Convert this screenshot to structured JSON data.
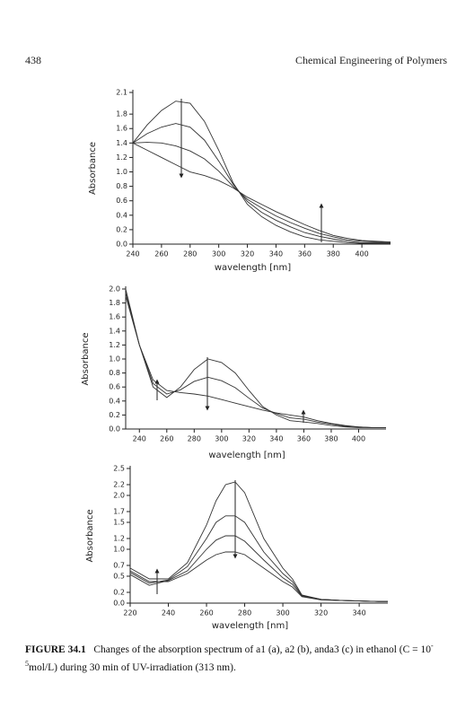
{
  "header": {
    "page_number": "438",
    "running_title": "Chemical Engineering of Polymers"
  },
  "chart_data": [
    {
      "type": "line",
      "ylabel": "Absorbance",
      "xlabel": "wavelength [nm]",
      "x": [
        240,
        250,
        260,
        270,
        280,
        290,
        300,
        310,
        320,
        330,
        340,
        350,
        360,
        370,
        380,
        390,
        400,
        410,
        420
      ],
      "series": [
        {
          "color": "#333333",
          "values": [
            1.4,
            1.65,
            1.85,
            1.98,
            1.95,
            1.7,
            1.3,
            0.85,
            0.55,
            0.38,
            0.26,
            0.17,
            0.1,
            0.06,
            0.04,
            0.02,
            0.01,
            0.01,
            0.01
          ]
        },
        {
          "color": "#333333",
          "values": [
            1.4,
            1.53,
            1.62,
            1.67,
            1.62,
            1.44,
            1.15,
            0.83,
            0.59,
            0.44,
            0.33,
            0.24,
            0.16,
            0.11,
            0.07,
            0.04,
            0.02,
            0.02,
            0.02
          ]
        },
        {
          "color": "#333333",
          "values": [
            1.4,
            1.41,
            1.4,
            1.36,
            1.29,
            1.18,
            1.01,
            0.8,
            0.62,
            0.5,
            0.39,
            0.3,
            0.22,
            0.15,
            0.1,
            0.06,
            0.04,
            0.03,
            0.02
          ]
        },
        {
          "color": "#333333",
          "values": [
            1.4,
            1.3,
            1.2,
            1.1,
            1.0,
            0.95,
            0.88,
            0.78,
            0.65,
            0.55,
            0.45,
            0.36,
            0.27,
            0.19,
            0.12,
            0.08,
            0.05,
            0.04,
            0.03
          ]
        }
      ],
      "xlim": [
        240,
        420
      ],
      "xticks": [
        240,
        260,
        280,
        300,
        320,
        340,
        360,
        380,
        400
      ],
      "ylim": [
        0,
        2.1
      ],
      "yticks": [
        {
          "value": 0,
          "label": "0.0"
        },
        0.2,
        0.4,
        0.6,
        0.8,
        {
          "value": 1,
          "label": "1.0"
        },
        1.2,
        1.4,
        1.6,
        1.8,
        2.1
      ]
    },
    {
      "type": "line",
      "ylabel": "Absorbance",
      "xlabel": "wavelength [nm]",
      "x": [
        230,
        240,
        250,
        260,
        270,
        280,
        290,
        300,
        310,
        320,
        330,
        340,
        350,
        360,
        370,
        380,
        390,
        400,
        410,
        420
      ],
      "series": [
        {
          "color": "#333333",
          "values": [
            2.0,
            1.2,
            0.6,
            0.45,
            0.6,
            0.85,
            1.0,
            0.95,
            0.8,
            0.55,
            0.32,
            0.2,
            0.12,
            0.1,
            0.08,
            0.05,
            0.03,
            0.02,
            0.02,
            0.02
          ]
        },
        {
          "color": "#333333",
          "values": [
            1.95,
            1.2,
            0.65,
            0.5,
            0.56,
            0.68,
            0.74,
            0.69,
            0.59,
            0.44,
            0.3,
            0.22,
            0.16,
            0.14,
            0.1,
            0.07,
            0.04,
            0.03,
            0.02,
            0.02
          ]
        },
        {
          "color": "#333333",
          "values": [
            1.9,
            1.2,
            0.7,
            0.55,
            0.52,
            0.5,
            0.47,
            0.42,
            0.37,
            0.32,
            0.27,
            0.23,
            0.2,
            0.17,
            0.12,
            0.08,
            0.05,
            0.03,
            0.02,
            0.02
          ]
        }
      ],
      "xlim": [
        230,
        420
      ],
      "xticks": [
        240,
        260,
        280,
        300,
        320,
        340,
        360,
        380,
        400
      ],
      "ylim": [
        0,
        2.0
      ],
      "yticks": [
        {
          "value": 0,
          "label": "0.0"
        },
        0.2,
        0.4,
        0.6,
        0.8,
        {
          "value": 1,
          "label": "1.0"
        },
        1.2,
        1.4,
        1.6,
        1.8,
        {
          "value": 2,
          "label": "2.0"
        }
      ]
    },
    {
      "type": "line",
      "ylabel": "Absorbance",
      "xlabel": "wavelength [nm]",
      "x": [
        220,
        230,
        240,
        250,
        260,
        265,
        270,
        275,
        280,
        290,
        300,
        305,
        310,
        320,
        330,
        340,
        350,
        355
      ],
      "series": [
        {
          "color": "#333333",
          "values": [
            0.65,
            0.45,
            0.45,
            0.75,
            1.45,
            1.9,
            2.2,
            2.25,
            2.05,
            1.2,
            0.65,
            0.45,
            0.15,
            0.07,
            0.05,
            0.04,
            0.03,
            0.03
          ]
        },
        {
          "color": "#333333",
          "values": [
            0.57,
            0.37,
            0.43,
            0.68,
            1.2,
            1.5,
            1.62,
            1.62,
            1.5,
            0.95,
            0.55,
            0.4,
            0.14,
            0.07,
            0.05,
            0.04,
            0.03,
            0.03
          ]
        },
        {
          "color": "#333333",
          "values": [
            0.53,
            0.33,
            0.42,
            0.6,
            1.0,
            1.17,
            1.25,
            1.25,
            1.15,
            0.8,
            0.47,
            0.35,
            0.13,
            0.07,
            0.05,
            0.04,
            0.03,
            0.03
          ]
        },
        {
          "color": "#333333",
          "values": [
            0.6,
            0.4,
            0.4,
            0.55,
            0.8,
            0.9,
            0.95,
            0.95,
            0.9,
            0.65,
            0.4,
            0.3,
            0.12,
            0.06,
            0.05,
            0.04,
            0.03,
            0.03
          ]
        }
      ],
      "xlim": [
        220,
        355
      ],
      "xticks": [
        220,
        240,
        260,
        280,
        300,
        320,
        340
      ],
      "ylim": [
        0,
        2.5
      ],
      "yticks": [
        {
          "value": 0,
          "label": "0.0"
        },
        0.2,
        0.5,
        0.7,
        {
          "value": 1,
          "label": "1.0"
        },
        1.2,
        1.5,
        1.7,
        {
          "value": 2,
          "label": "2.0"
        },
        2.2,
        2.5
      ]
    }
  ],
  "caption": {
    "label": "FIGURE 34.1",
    "text": "Changes of the absorption spectrum of a1 (a), a2 (b), anda3 (c) in ethanol (C = 10",
    "superscript": "-5",
    "text_end": "mol/L) during 30 min of UV-irradiation (313 nm)."
  }
}
